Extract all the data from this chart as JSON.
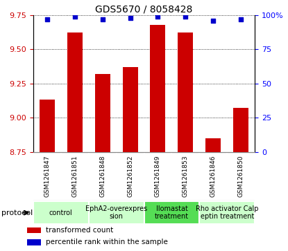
{
  "title": "GDS5670 / 8058428",
  "samples": [
    "GSM1261847",
    "GSM1261851",
    "GSM1261848",
    "GSM1261852",
    "GSM1261849",
    "GSM1261853",
    "GSM1261846",
    "GSM1261850"
  ],
  "bar_values": [
    9.13,
    9.62,
    9.32,
    9.37,
    9.68,
    9.62,
    8.85,
    9.07
  ],
  "dot_values": [
    97,
    99,
    97,
    98,
    99,
    99,
    96,
    97
  ],
  "ylim_left": [
    8.75,
    9.75
  ],
  "ylim_right": [
    0,
    100
  ],
  "yticks_left": [
    8.75,
    9.0,
    9.25,
    9.5,
    9.75
  ],
  "yticks_right": [
    0,
    25,
    50,
    75,
    100
  ],
  "bar_color": "#cc0000",
  "dot_color": "#0000cc",
  "protocol_groups": [
    {
      "label": "control",
      "start": 0,
      "end": 2,
      "color": "#ccffcc"
    },
    {
      "label": "EphA2-overexpres\nsion",
      "start": 2,
      "end": 4,
      "color": "#ccffcc"
    },
    {
      "label": "Ilomastat\ntreatment",
      "start": 4,
      "end": 6,
      "color": "#55dd55"
    },
    {
      "label": "Rho activator Calp\neptin treatment",
      "start": 6,
      "end": 8,
      "color": "#ccffcc"
    }
  ],
  "legend_items": [
    {
      "label": "transformed count",
      "color": "#cc0000"
    },
    {
      "label": "percentile rank within the sample",
      "color": "#0000cc"
    }
  ],
  "protocol_label": "protocol",
  "sample_bg_color": "#c8c8c8",
  "sample_border_color": "#888888",
  "plot_bg_color": "#ffffff",
  "grid_color": "#000000",
  "title_fontsize": 10,
  "tick_fontsize": 8,
  "sample_fontsize": 6.5,
  "proto_fontsize": 7,
  "legend_fontsize": 7.5
}
